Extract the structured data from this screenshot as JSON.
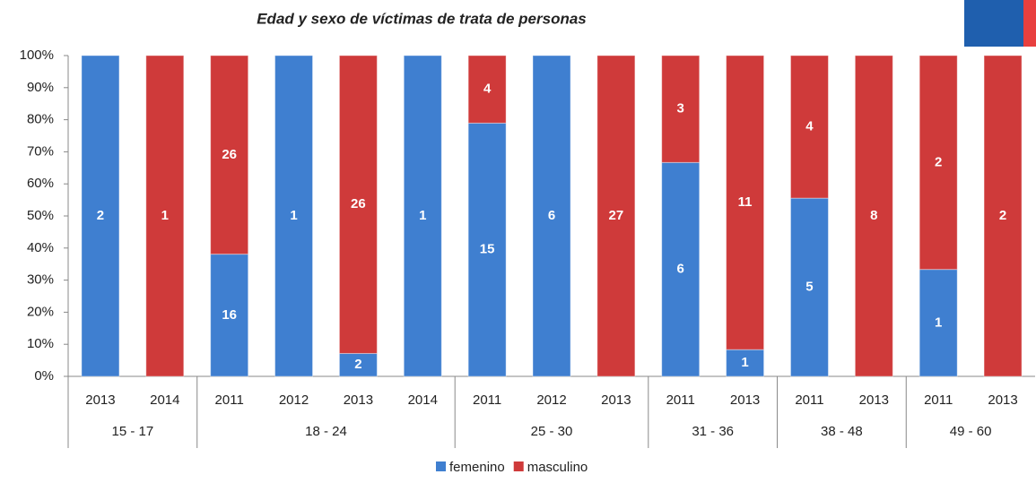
{
  "chart_data": {
    "type": "bar",
    "stack": "percent",
    "title": "Edad y sexo de víctimas de trata de personas",
    "categories": [
      "2013",
      "2014",
      "2011",
      "2012",
      "2013",
      "2014",
      "2011",
      "2012",
      "2013",
      "2011",
      "2013",
      "2011",
      "2013",
      "2011",
      "2013"
    ],
    "category_groups": [
      "15 - 17",
      "15 - 17",
      "18 - 24",
      "18 - 24",
      "18 - 24",
      "18 - 24",
      "25 - 30",
      "25 - 30",
      "25 - 30",
      "31 - 36",
      "31 - 36",
      "38 - 48",
      "38 - 48",
      "49 - 60",
      "49 - 60"
    ],
    "series": [
      {
        "name": "femenino",
        "color": "#3f7fd0",
        "values": [
          2,
          0,
          16,
          1,
          2,
          1,
          15,
          6,
          0,
          6,
          1,
          5,
          0,
          1,
          0
        ]
      },
      {
        "name": "masculino",
        "color": "#cf3a3a",
        "values": [
          0,
          1,
          26,
          0,
          26,
          0,
          4,
          0,
          27,
          3,
          11,
          4,
          8,
          2,
          2
        ]
      }
    ],
    "ylim": [
      0,
      100
    ],
    "yticks": [
      {
        "value": 0,
        "label": "0%"
      },
      {
        "value": 10,
        "label": "10%"
      },
      {
        "value": 20,
        "label": "20%"
      },
      {
        "value": 30,
        "label": "30%"
      },
      {
        "value": 40,
        "label": "40%"
      },
      {
        "value": 50,
        "label": "50%"
      },
      {
        "value": 60,
        "label": "60%"
      },
      {
        "value": 70,
        "label": "70%"
      },
      {
        "value": 80,
        "label": "80%"
      },
      {
        "value": 90,
        "label": "90%"
      },
      {
        "value": 100,
        "label": "100%"
      }
    ],
    "legend": "bottom"
  }
}
